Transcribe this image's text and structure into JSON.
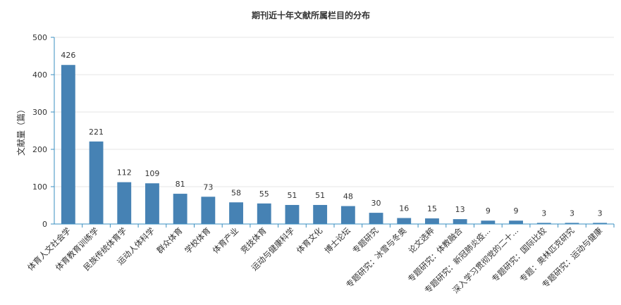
{
  "chart_data": {
    "type": "bar",
    "title": "期刊近十年文献所属栏目的分布",
    "xlabel": "",
    "ylabel": "文献量（篇）",
    "ylim": [
      0,
      500
    ],
    "yticks": [
      0,
      100,
      200,
      300,
      400,
      500
    ],
    "grid": true,
    "legend": "none",
    "bar_color": "#4682b4",
    "axis_color": "#3a8fc0",
    "categories": [
      "体育人文社会学",
      "体育教育训练学",
      "民族传统体育学",
      "运动人体科学",
      "群众体育",
      "学校体育",
      "体育产业",
      "竞技体育",
      "运动与健康科学",
      "体育文化",
      "博士论坛",
      "专题研究",
      "专题研究：冰雪与冬奥",
      "论文选粹",
      "专题研究：体教融合",
      "专题研究：新冠肺炎疫...",
      "深入学习贯彻党的二十...",
      "专题研究：国际比较",
      "专题：奥林匹克研究",
      "专题研究：运动与健康"
    ],
    "values": [
      426,
      221,
      112,
      109,
      81,
      73,
      58,
      55,
      51,
      51,
      48,
      30,
      16,
      15,
      13,
      9,
      9,
      3,
      3,
      3
    ]
  }
}
